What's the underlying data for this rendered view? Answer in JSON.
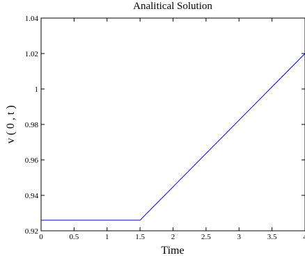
{
  "chart_data": {
    "type": "line",
    "title": "Analitical Solution",
    "xlabel": "Time",
    "ylabel": "v ( 0 , t )",
    "xlim": [
      0,
      4
    ],
    "ylim": [
      0.92,
      1.04
    ],
    "grid": false,
    "x_ticks": [
      "0",
      "0.5",
      "1",
      "1.5",
      "2",
      "2.5",
      "3",
      "3.5",
      "4"
    ],
    "y_ticks": [
      "0.92",
      "0.94",
      "0.96",
      "0.98",
      "1",
      "1.02",
      "1.04"
    ],
    "series": [
      {
        "color": "#0000ff",
        "x": [
          0,
          1.5,
          4
        ],
        "y": [
          0.926,
          0.926,
          1.02
        ]
      }
    ]
  }
}
